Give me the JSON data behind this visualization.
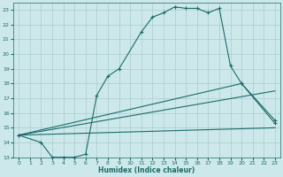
{
  "xlabel": "Humidex (Indice chaleur)",
  "xlim": [
    -0.5,
    23.5
  ],
  "ylim": [
    13,
    23.5
  ],
  "xticks": [
    0,
    1,
    2,
    3,
    4,
    5,
    6,
    7,
    8,
    9,
    10,
    11,
    12,
    13,
    14,
    15,
    16,
    17,
    18,
    19,
    20,
    21,
    22,
    23
  ],
  "yticks": [
    13,
    14,
    15,
    16,
    17,
    18,
    19,
    20,
    21,
    22,
    23
  ],
  "bg_color": "#cde8ea",
  "line_color": "#1a6b6b",
  "grid_color": "#aacccc",
  "lines": [
    {
      "x": [
        0,
        2,
        3,
        4,
        5,
        6,
        7,
        8,
        9,
        11,
        12,
        13,
        14,
        15,
        16,
        17,
        18,
        19,
        20,
        23
      ],
      "y": [
        14.5,
        14.0,
        13.0,
        13.0,
        13.0,
        13.2,
        17.2,
        18.5,
        19.0,
        21.5,
        22.5,
        22.8,
        23.2,
        23.1,
        23.1,
        22.8,
        23.1,
        19.2,
        18.0,
        15.3
      ],
      "has_markers": true
    },
    {
      "x": [
        0,
        20,
        23
      ],
      "y": [
        14.5,
        18.0,
        15.5
      ],
      "has_markers": true
    },
    {
      "x": [
        0,
        23
      ],
      "y": [
        14.5,
        17.5
      ],
      "has_markers": false
    },
    {
      "x": [
        0,
        23
      ],
      "y": [
        14.5,
        15.0
      ],
      "has_markers": false
    }
  ]
}
